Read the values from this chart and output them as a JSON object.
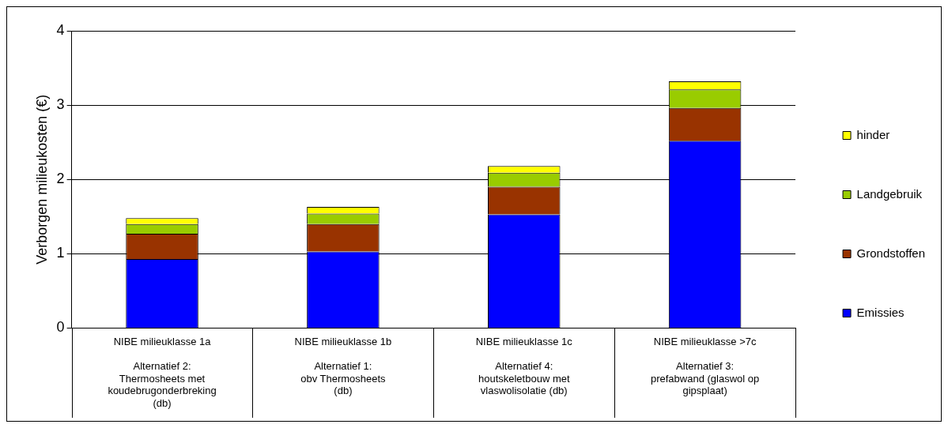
{
  "chart_data": {
    "type": "bar",
    "stacked": true,
    "ylabel": "Verborgen milieukosten (€)",
    "categories": [
      "NIBE milieuklasse 1a\n\nAlternatief 2:\nThermosheets met\nkoudebrugonderbreking\n(db)",
      "NIBE milieuklasse 1b\n\nAlternatief 1:\nobv Thermosheets\n(db)",
      "NIBE milieuklasse 1c\n\nAlternatief 4:\nhoutskeletbouw met\nvlaswolisolatie (db)",
      "NIBE milieuklasse >7c\n\nAlternatief 3:\nprefabwand (glaswol op\ngipsplaat)"
    ],
    "series": [
      {
        "name": "Emissies",
        "color": "#0000ff",
        "values": [
          0.93,
          1.03,
          1.53,
          2.52
        ]
      },
      {
        "name": "Grondstoffen",
        "color": "#993300",
        "values": [
          0.34,
          0.37,
          0.37,
          0.44
        ]
      },
      {
        "name": "Landgebruik",
        "color": "#99cc00",
        "values": [
          0.13,
          0.14,
          0.19,
          0.25
        ]
      },
      {
        "name": "hinder",
        "color": "#ffff00",
        "values": [
          0.08,
          0.09,
          0.09,
          0.11
        ]
      }
    ],
    "ylim": [
      0,
      4
    ],
    "yticks": [
      0,
      1,
      2,
      3,
      4
    ],
    "grid": "y",
    "legend": "right"
  }
}
